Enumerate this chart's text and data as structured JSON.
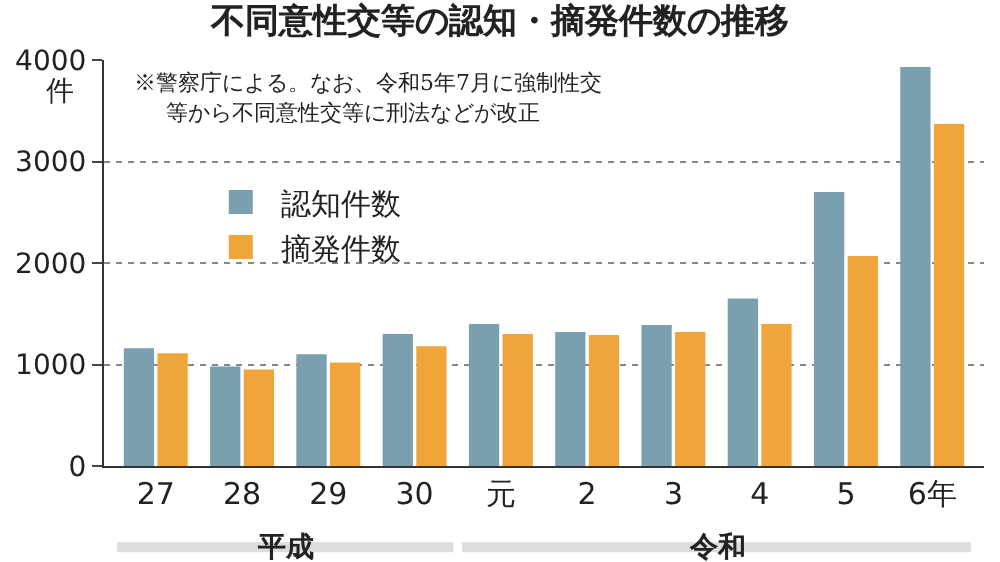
{
  "chart_data": {
    "type": "bar",
    "title": "不同意性交等の認知・摘発件数の推移",
    "ylabel": "件",
    "categories": [
      "27",
      "28",
      "29",
      "30",
      "元",
      "2",
      "3",
      "4",
      "5",
      "6年"
    ],
    "series": [
      {
        "name": "認知件数",
        "color": "#7a9fae",
        "values": [
          1160,
          980,
          1100,
          1300,
          1400,
          1320,
          1390,
          1650,
          2700,
          3930
        ]
      },
      {
        "name": "摘発件数",
        "color": "#f0a53a",
        "values": [
          1110,
          950,
          1020,
          1180,
          1300,
          1290,
          1320,
          1400,
          2070,
          3370
        ]
      }
    ],
    "ylim": [
      0,
      4000
    ],
    "yticks": [
      0,
      1000,
      2000,
      3000,
      4000
    ],
    "grid": "y",
    "legend": "top left",
    "annotations": [
      "※警察庁による。なお、令和5年7月に強制性交",
      "等から不同意性交等に刑法などが改正",
      "平成",
      "令和"
    ]
  }
}
